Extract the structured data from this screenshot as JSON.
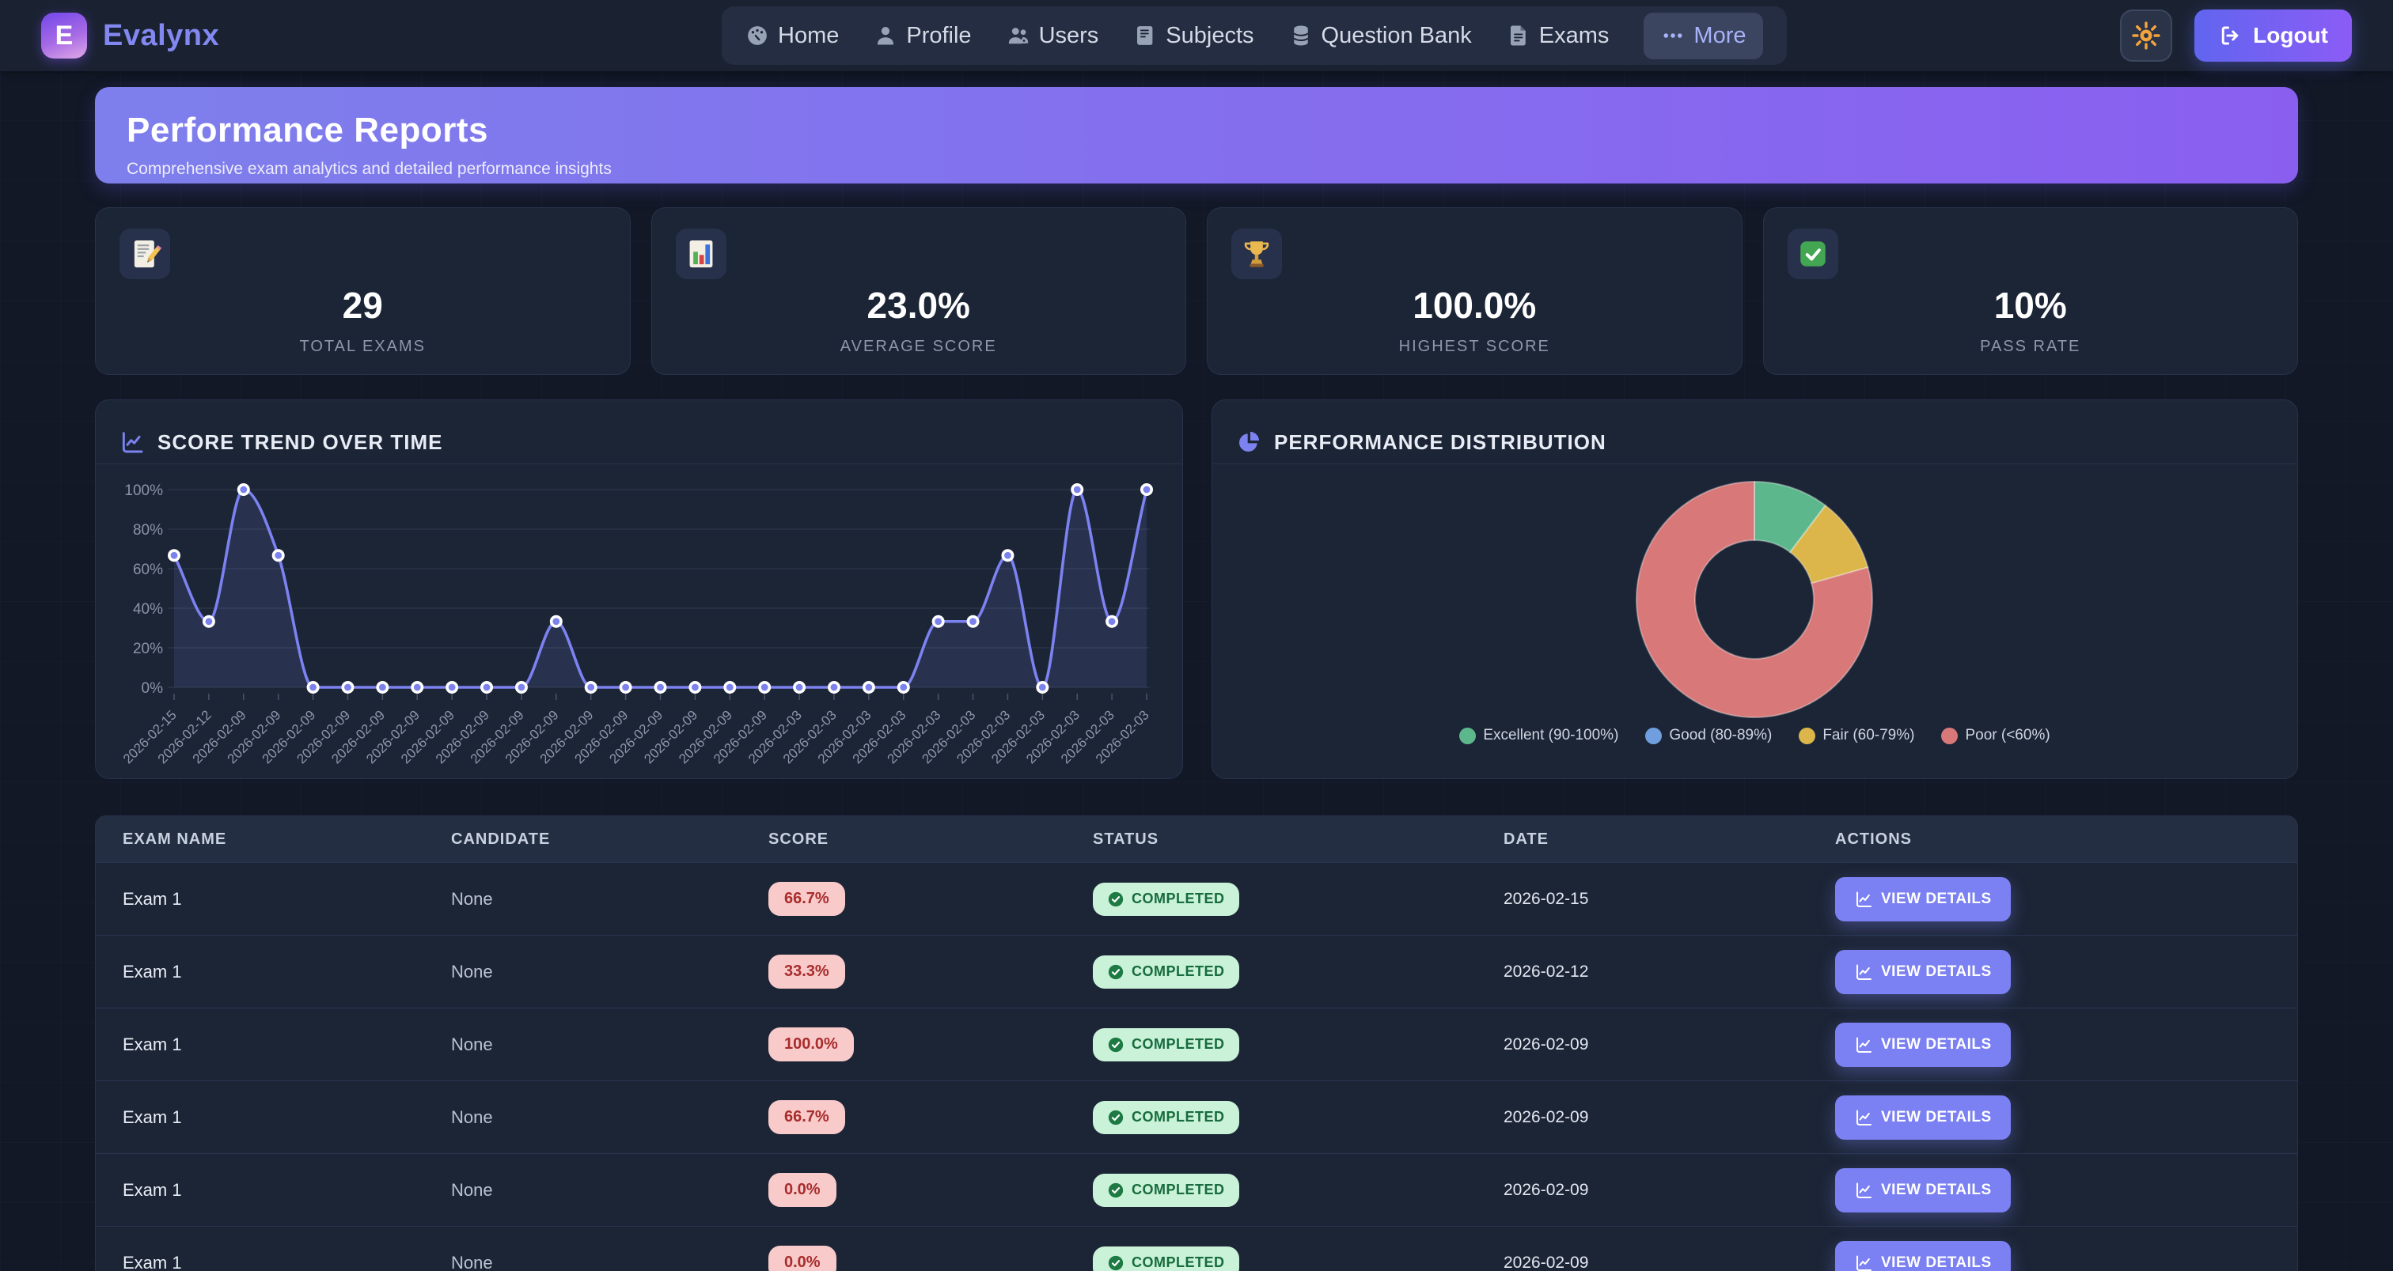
{
  "brand": {
    "name": "Evalynx",
    "logo_letter": "E"
  },
  "nav": {
    "items": [
      {
        "label": "Home",
        "icon": "dashboard-icon",
        "active": false
      },
      {
        "label": "Profile",
        "icon": "profile-icon",
        "active": false
      },
      {
        "label": "Users",
        "icon": "users-icon",
        "active": false
      },
      {
        "label": "Subjects",
        "icon": "subjects-icon",
        "active": false
      },
      {
        "label": "Question Bank",
        "icon": "question-bank-icon",
        "active": false
      },
      {
        "label": "Exams",
        "icon": "exams-icon",
        "active": false
      },
      {
        "label": "More",
        "icon": "more-icon",
        "active": true
      }
    ],
    "logout_label": "Logout"
  },
  "banner": {
    "title": "Performance Reports",
    "subtitle": "Comprehensive exam analytics and detailed performance insights"
  },
  "stats": [
    {
      "icon": "memo-icon",
      "value": "29",
      "label": "TOTAL EXAMS"
    },
    {
      "icon": "bar-chart-icon",
      "value": "23.0%",
      "label": "AVERAGE SCORE"
    },
    {
      "icon": "trophy-icon",
      "value": "100.0%",
      "label": "HIGHEST SCORE"
    },
    {
      "icon": "check-icon",
      "value": "10%",
      "label": "PASS RATE"
    }
  ],
  "panels": {
    "trend_title": "SCORE TREND OVER TIME",
    "distribution_title": "PERFORMANCE DISTRIBUTION"
  },
  "chart_data": [
    {
      "type": "line",
      "title": "SCORE TREND OVER TIME",
      "x": [
        "2026-02-15",
        "2026-02-12",
        "2026-02-09",
        "2026-02-09",
        "2026-02-09",
        "2026-02-09",
        "2026-02-09",
        "2026-02-09",
        "2026-02-09",
        "2026-02-09",
        "2026-02-09",
        "2026-02-09",
        "2026-02-09",
        "2026-02-09",
        "2026-02-09",
        "2026-02-09",
        "2026-02-09",
        "2026-02-09",
        "2026-02-03",
        "2026-02-03",
        "2026-02-03",
        "2026-02-03",
        "2026-02-03",
        "2026-02-03",
        "2026-02-03",
        "2026-02-03",
        "2026-02-03",
        "2026-02-03",
        "2026-02-03"
      ],
      "values": [
        66.7,
        33.3,
        100,
        66.7,
        0,
        0,
        0,
        0,
        0,
        0,
        0,
        33.3,
        0,
        0,
        0,
        0,
        0,
        0,
        0,
        0,
        0,
        0,
        33.3,
        33.3,
        66.7,
        0,
        100,
        33.3,
        100
      ],
      "ylim": [
        0,
        100
      ],
      "yticks": [
        0,
        20,
        40,
        60,
        80,
        100
      ],
      "ytick_suffix": "%",
      "grid": true,
      "line_color": "#7c82f0",
      "point_fill": "#7b82ec",
      "point_ring": "#ffffff",
      "area_fill": "rgba(124,130,240,0.13)",
      "legend_position": "none"
    },
    {
      "type": "pie",
      "title": "PERFORMANCE DISTRIBUTION",
      "labels": [
        "Excellent (90-100%)",
        "Good (80-89%)",
        "Fair (60-79%)",
        "Poor (<60%)"
      ],
      "values_pct": [
        10.3,
        0,
        10.3,
        79.4
      ],
      "colors": [
        "#5cb88c",
        "#6f9fde",
        "#dcb64a",
        "#d87878"
      ],
      "donut": true,
      "legend_position": "bottom"
    }
  ],
  "table": {
    "headers": [
      "EXAM NAME",
      "CANDIDATE",
      "SCORE",
      "STATUS",
      "DATE",
      "ACTIONS"
    ],
    "action_label": "VIEW DETAILS",
    "rows": [
      {
        "exam": "Exam 1",
        "candidate": "None",
        "score": "66.7%",
        "status": "COMPLETED",
        "date": "2026-02-15"
      },
      {
        "exam": "Exam 1",
        "candidate": "None",
        "score": "33.3%",
        "status": "COMPLETED",
        "date": "2026-02-12"
      },
      {
        "exam": "Exam 1",
        "candidate": "None",
        "score": "100.0%",
        "status": "COMPLETED",
        "date": "2026-02-09"
      },
      {
        "exam": "Exam 1",
        "candidate": "None",
        "score": "66.7%",
        "status": "COMPLETED",
        "date": "2026-02-09"
      },
      {
        "exam": "Exam 1",
        "candidate": "None",
        "score": "0.0%",
        "status": "COMPLETED",
        "date": "2026-02-09"
      },
      {
        "exam": "Exam 1",
        "candidate": "None",
        "score": "0.0%",
        "status": "COMPLETED",
        "date": "2026-02-09"
      }
    ]
  }
}
